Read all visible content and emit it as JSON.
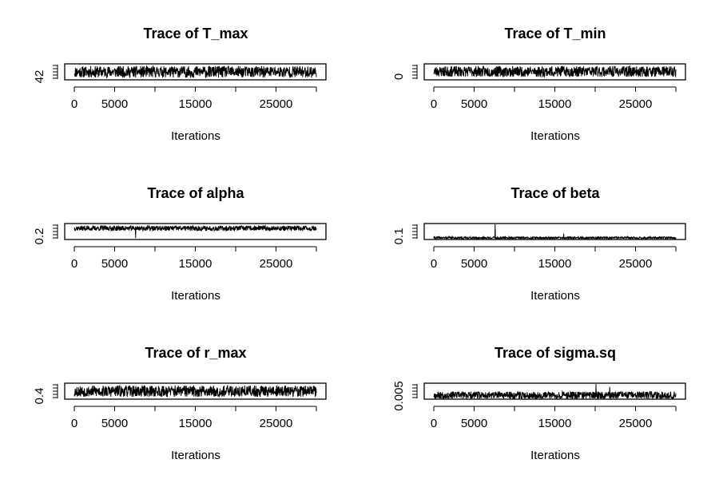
{
  "chart_data": [
    {
      "type": "line",
      "title": "Trace of T_max",
      "xlabel": "Iterations",
      "ylabel": "",
      "xlim": [
        0,
        30000
      ],
      "x_ticks": [
        0,
        5000,
        15000,
        25000
      ],
      "y_tick_labels": [
        "42"
      ],
      "ylim": [
        41.0,
        45.0
      ],
      "series": [
        {
          "center": 43.0,
          "half_range": 1.6,
          "seed": 11,
          "spikes": []
        }
      ],
      "grid": false
    },
    {
      "type": "line",
      "title": "Trace of T_min",
      "xlabel": "Iterations",
      "ylabel": "",
      "xlim": [
        0,
        30000
      ],
      "x_ticks": [
        0,
        5000,
        15000,
        25000
      ],
      "y_tick_labels": [
        "0"
      ],
      "ylim": [
        -1.0,
        3.0
      ],
      "series": [
        {
          "center": 1.1,
          "half_range": 1.5,
          "seed": 23,
          "spikes": []
        }
      ],
      "grid": false
    },
    {
      "type": "line",
      "title": "Trace of alpha",
      "xlabel": "Iterations",
      "ylabel": "",
      "xlim": [
        0,
        30000
      ],
      "x_ticks": [
        0,
        5000,
        15000,
        25000
      ],
      "y_tick_labels": [
        "0.2"
      ],
      "ylim": [
        0.16,
        0.36
      ],
      "series": [
        {
          "center": 0.305,
          "half_range": 0.035,
          "seed": 37,
          "spikes": [
            {
              "x": 7600,
              "y": 0.17
            }
          ]
        }
      ],
      "grid": false
    },
    {
      "type": "line",
      "title": "Trace of beta",
      "xlabel": "Iterations",
      "ylabel": "",
      "xlim": [
        0,
        30000
      ],
      "x_ticks": [
        0,
        5000,
        15000,
        25000
      ],
      "y_tick_labels": [
        "0.1"
      ],
      "ylim": [
        0.0,
        0.4
      ],
      "series": [
        {
          "center": 0.025,
          "half_range": 0.03,
          "seed": 41,
          "spikes": [
            {
              "x": 7600,
              "y": 0.4
            },
            {
              "x": 16100,
              "y": 0.14
            }
          ]
        }
      ],
      "grid": false
    },
    {
      "type": "line",
      "title": "Trace of r_max",
      "xlabel": "Iterations",
      "ylabel": "",
      "xlim": [
        0,
        30000
      ],
      "x_ticks": [
        0,
        5000,
        15000,
        25000
      ],
      "y_tick_labels": [
        "0.4"
      ],
      "ylim": [
        0.36,
        0.56
      ],
      "series": [
        {
          "center": 0.46,
          "half_range": 0.08,
          "seed": 53,
          "spikes": []
        }
      ],
      "grid": false
    },
    {
      "type": "line",
      "title": "Trace of sigma.sq",
      "xlabel": "Iterations",
      "ylabel": "",
      "xlim": [
        0,
        30000
      ],
      "x_ticks": [
        0,
        5000,
        15000,
        25000
      ],
      "y_tick_labels": [
        "0.005"
      ],
      "ylim": [
        0.0,
        0.02
      ],
      "series": [
        {
          "center": 0.0045,
          "half_range": 0.005,
          "seed": 67,
          "spikes": [
            {
              "x": 20100,
              "y": 0.02
            },
            {
              "x": 21800,
              "y": 0.016
            }
          ]
        }
      ],
      "grid": false
    }
  ]
}
